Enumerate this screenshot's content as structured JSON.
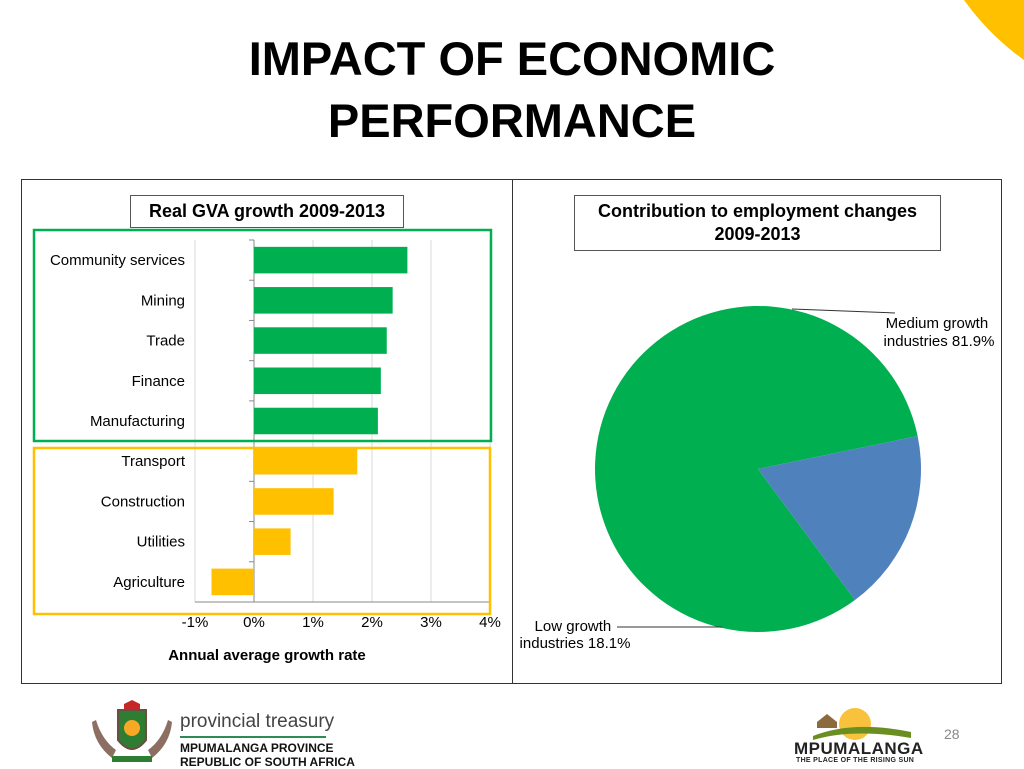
{
  "slide": {
    "title_line1": "IMPACT OF ECONOMIC",
    "title_line2": "PERFORMANCE",
    "page_number": "28"
  },
  "colors": {
    "high_growth": "#00b050",
    "low_growth": "#ffc000",
    "pie_medium": "#00b050",
    "pie_low": "#4f81bd",
    "corner_accent": "#ffc000"
  },
  "chart_data": [
    {
      "type": "bar",
      "orientation": "horizontal",
      "title": "Real GVA growth 2009-2013",
      "xlabel": "Annual average growth rate",
      "ylabel": "",
      "categories": [
        "Community services",
        "Mining",
        "Trade",
        "Finance",
        "Manufacturing",
        "Transport",
        "Construction",
        "Utilities",
        "Agriculture"
      ],
      "values": [
        2.6,
        2.35,
        2.25,
        2.15,
        2.1,
        1.75,
        1.35,
        0.62,
        -0.72
      ],
      "xlim": [
        -1,
        4
      ],
      "xticks": [
        "-1%",
        "0%",
        "1%",
        "2%",
        "3%",
        "4%"
      ],
      "xtick_values": [
        -1,
        0,
        1,
        2,
        3,
        4
      ],
      "unit": "%",
      "grid": true,
      "groups": [
        {
          "name": "",
          "color": "#00b050",
          "categories": [
            "Community services",
            "Mining",
            "Trade",
            "Finance",
            "Manufacturing"
          ]
        },
        {
          "name": "",
          "color": "#ffc000",
          "categories": [
            "Transport",
            "Construction",
            "Utilities",
            "Agriculture"
          ]
        }
      ]
    },
    {
      "type": "pie",
      "title": "Contribution to employment changes 2009-2013",
      "title_line1": "Contribution to employment changes",
      "title_line2": "2009-2013",
      "slices": [
        {
          "label_line1": "Medium growth",
          "label_line2": "industries 81.9%",
          "value": 81.9,
          "color": "#00b050"
        },
        {
          "label_line1": "Low growth",
          "label_line2": "industries 18.1%",
          "value": 18.1,
          "color": "#4f81bd"
        }
      ]
    }
  ],
  "footer": {
    "treasury_name": "provincial treasury",
    "treasury_province": "MPUMALANGA PROVINCE",
    "treasury_republic": "REPUBLIC OF SOUTH AFRICA",
    "mpumalanga_name": "MPUMALANGA",
    "mpumalanga_slogan": "THE PLACE OF THE RISING SUN"
  }
}
